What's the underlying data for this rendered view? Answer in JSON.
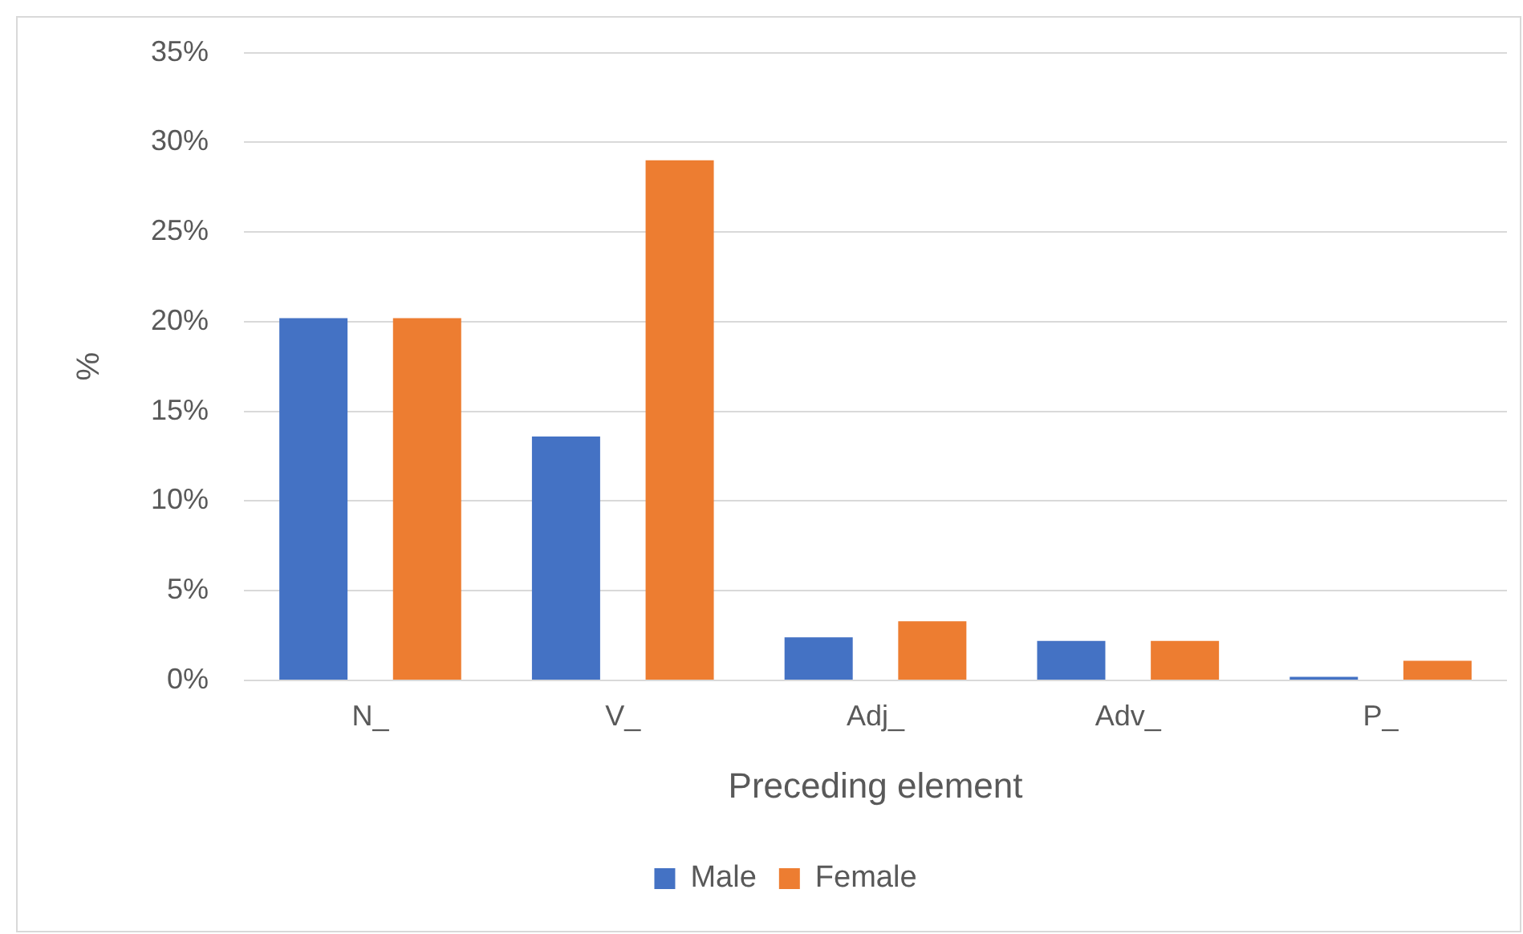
{
  "chart_data": {
    "type": "bar",
    "xlabel": "Preceding element",
    "ylabel": "%",
    "categories": [
      "N_",
      "V_",
      "Adj_",
      "Adv_",
      "P_"
    ],
    "series": [
      {
        "name": "Male",
        "color": "#4472c4",
        "values": [
          20.2,
          13.6,
          2.4,
          2.2,
          0.2
        ]
      },
      {
        "name": "Female",
        "color": "#ed7d31",
        "values": [
          20.2,
          29.0,
          3.3,
          2.2,
          1.1
        ]
      }
    ],
    "ylim": [
      0,
      35
    ],
    "yticks": [
      {
        "value": 0,
        "label": "0%"
      },
      {
        "value": 5,
        "label": "5%"
      },
      {
        "value": 10,
        "label": "10%"
      },
      {
        "value": 15,
        "label": "15%"
      },
      {
        "value": 20,
        "label": "20%"
      },
      {
        "value": 25,
        "label": "25%"
      },
      {
        "value": 30,
        "label": "30%"
      },
      {
        "value": 35,
        "label": "35%"
      }
    ],
    "grid": "y",
    "legend": "bottom"
  }
}
